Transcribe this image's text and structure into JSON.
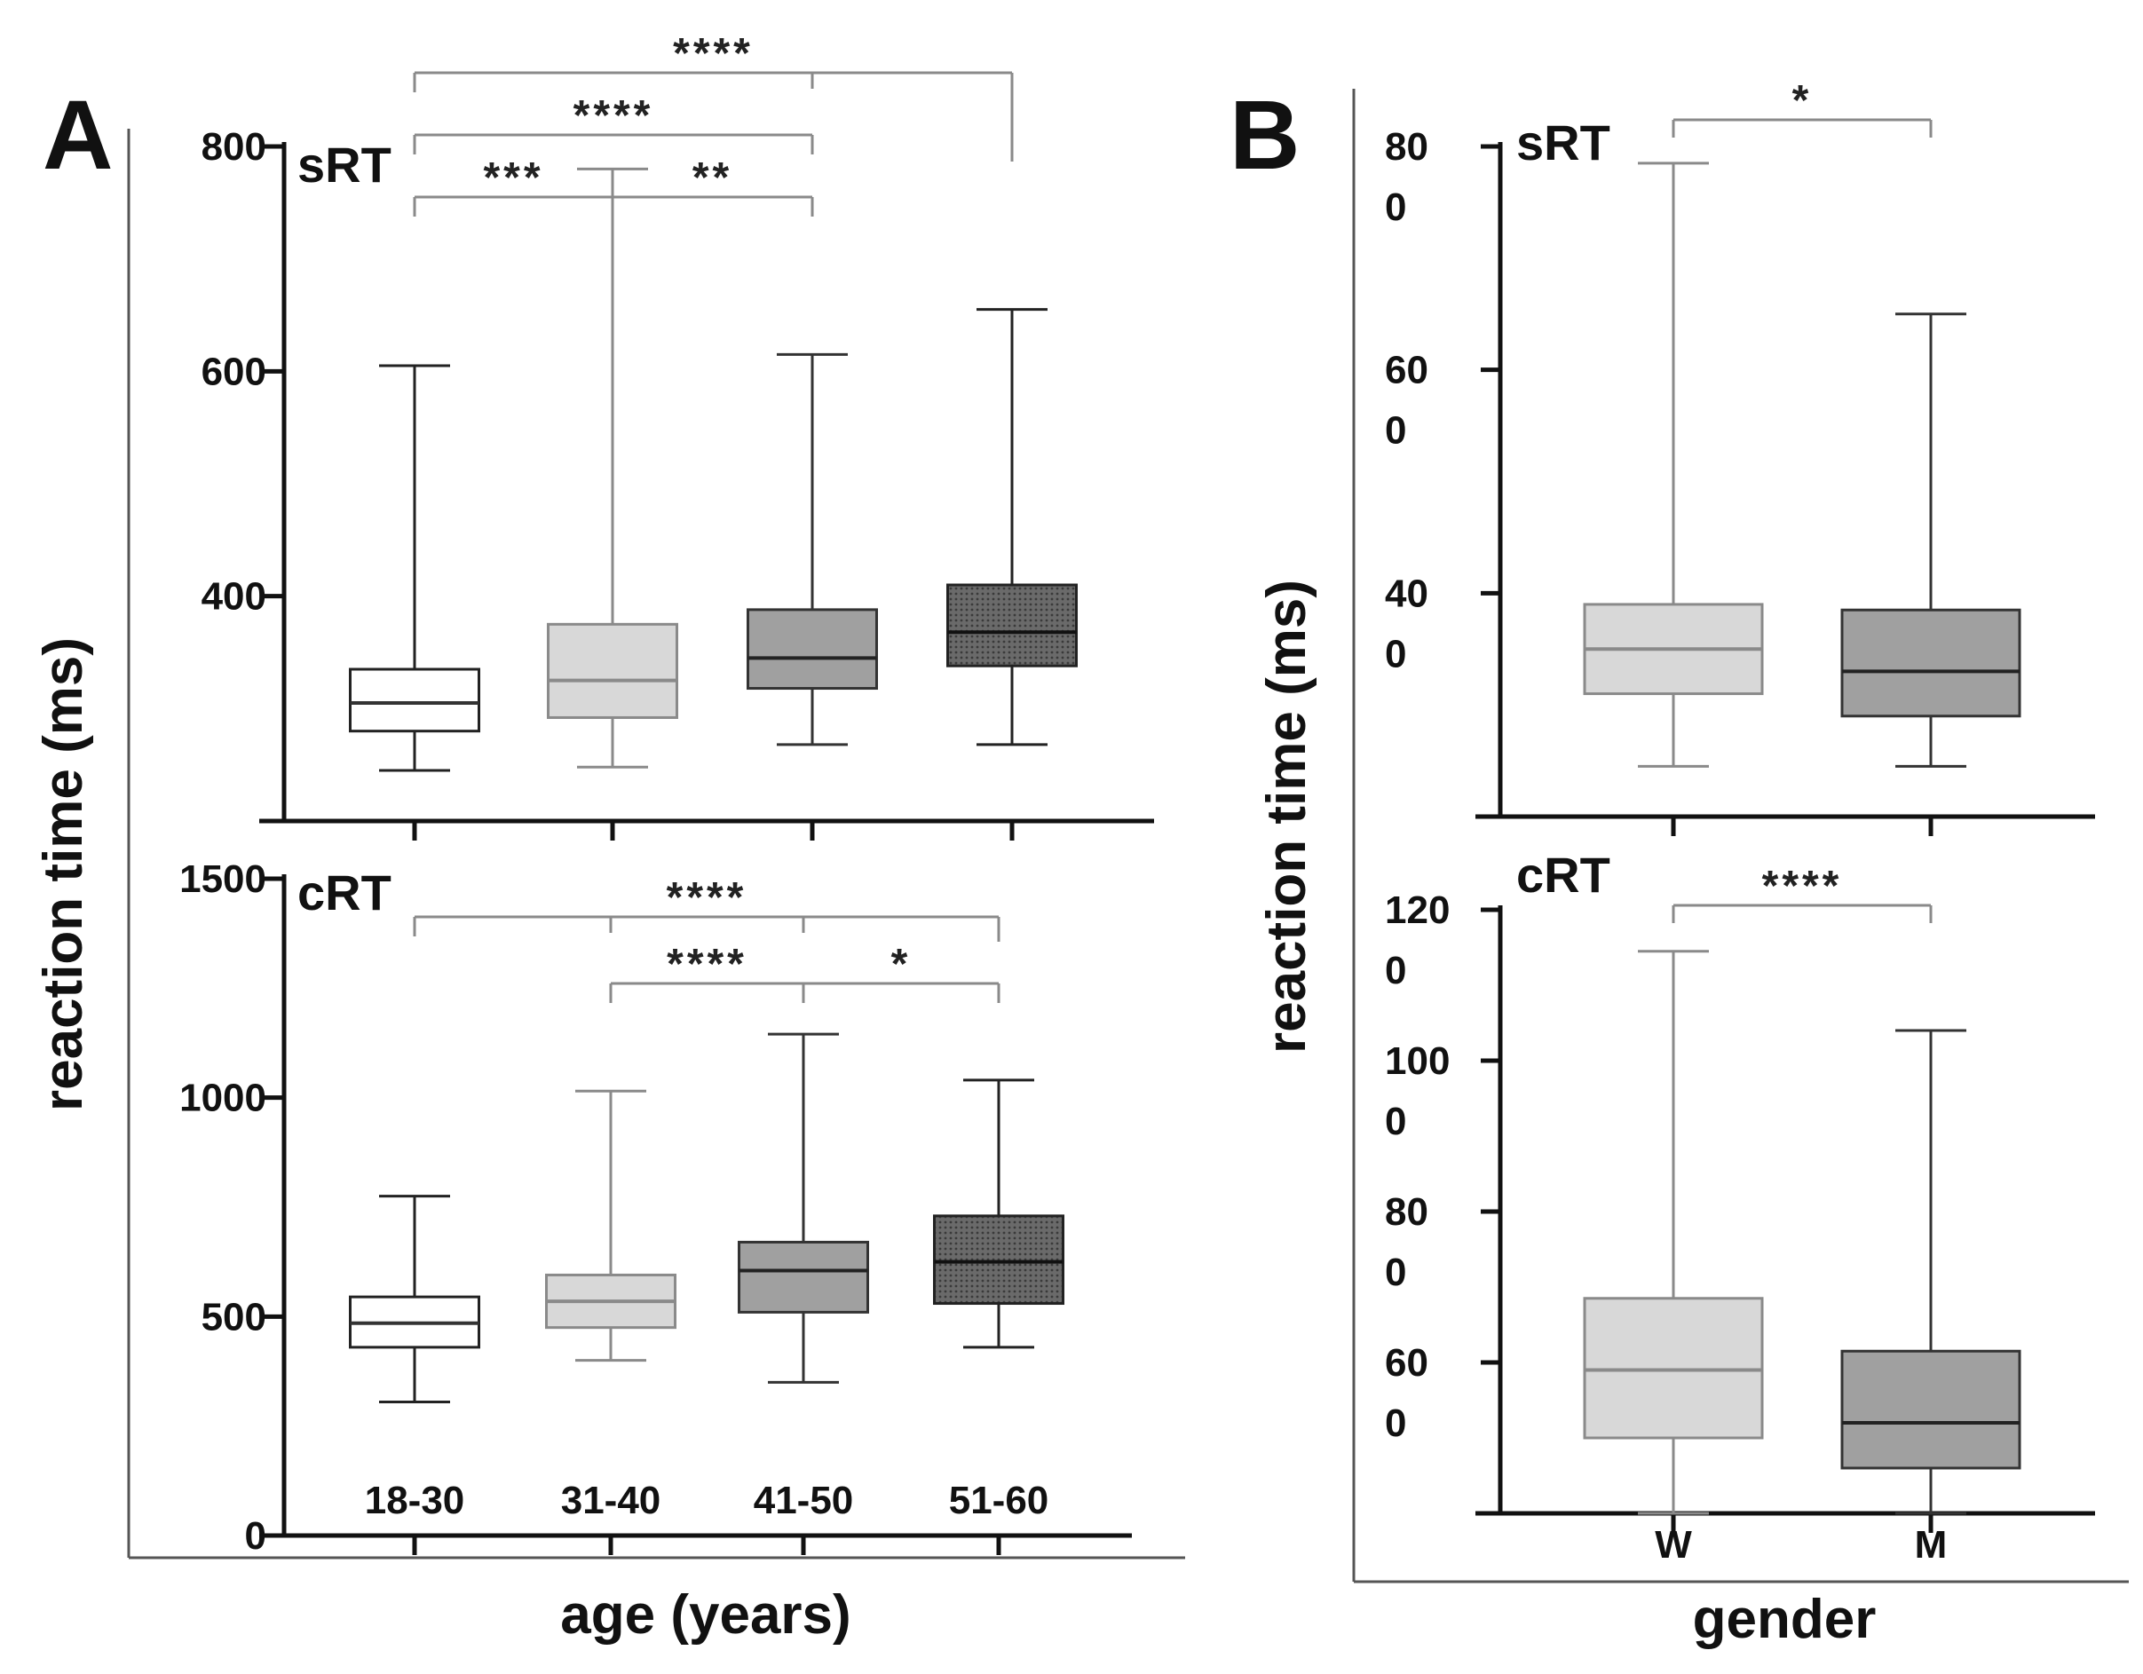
{
  "figure": {
    "panel_a_letter": "A",
    "panel_b_letter": "B",
    "ylabel": "reaction time (ms)",
    "panel_a_xlabel": "age (years)",
    "panel_b_xlabel": "gender"
  },
  "colors": {
    "white_box": "#ffffff",
    "light_box": "#d8d8d8",
    "mid_box": "#a0a0a0",
    "dark_box": "#555555",
    "bracket": "#8a8a8a"
  },
  "chart_data": [
    {
      "id": "A-sRT",
      "type": "box",
      "panel": "A",
      "title": "sRT",
      "xlabel": "age (years)",
      "ylabel": "reaction time (ms)",
      "ylim": [
        200,
        800
      ],
      "yticks": [
        {
          "value": 400,
          "label": "400"
        },
        {
          "value": 600,
          "label": "600"
        },
        {
          "value": 800,
          "label": "800"
        }
      ],
      "categories": [
        "18-30",
        "31-40",
        "41-50",
        "51-60"
      ],
      "fills": [
        "white",
        "light",
        "mid",
        "dark"
      ],
      "boxes": [
        {
          "min": 245,
          "q1": 280,
          "median": 305,
          "q3": 335,
          "max": 605
        },
        {
          "min": 248,
          "q1": 292,
          "median": 325,
          "q3": 375,
          "max": 780
        },
        {
          "min": 268,
          "q1": 318,
          "median": 345,
          "q3": 388,
          "max": 615
        },
        {
          "min": 268,
          "q1": 338,
          "median": 368,
          "q3": 410,
          "max": 655
        }
      ],
      "brackets": [
        {
          "from": 0,
          "to": 1,
          "label": "***",
          "level": 0
        },
        {
          "from": 1,
          "to": 2,
          "label": "**",
          "level": 0
        },
        {
          "from": 0,
          "to": 2,
          "label": "****",
          "level": 1
        },
        {
          "from": 0,
          "to": 3,
          "label": "****",
          "level": 2,
          "mids": [
            2
          ]
        }
      ]
    },
    {
      "id": "A-cRT",
      "type": "box",
      "panel": "A",
      "title": "cRT",
      "xlabel": "age (years)",
      "ylabel": "reaction time (ms)",
      "ylim": [
        0,
        1500
      ],
      "yticks": [
        {
          "value": 0,
          "label": "0"
        },
        {
          "value": 500,
          "label": "500"
        },
        {
          "value": 1000,
          "label": "1000"
        },
        {
          "value": 1500,
          "label": "1500"
        }
      ],
      "categories": [
        "18-30",
        "31-40",
        "41-50",
        "51-60"
      ],
      "fills": [
        "white",
        "light",
        "mid",
        "dark"
      ],
      "boxes": [
        {
          "min": 305,
          "q1": 430,
          "median": 485,
          "q3": 545,
          "max": 775
        },
        {
          "min": 400,
          "q1": 475,
          "median": 535,
          "q3": 595,
          "max": 1015
        },
        {
          "min": 350,
          "q1": 510,
          "median": 605,
          "q3": 670,
          "max": 1145
        },
        {
          "min": 430,
          "q1": 530,
          "median": 625,
          "q3": 730,
          "max": 1040
        }
      ],
      "brackets": [
        {
          "from": 1,
          "to": 2,
          "label": "****",
          "level": 0
        },
        {
          "from": 2,
          "to": 3,
          "label": "*",
          "level": 0
        },
        {
          "from": 0,
          "to": 3,
          "label": "****",
          "level": 1,
          "mids": [
            1,
            2
          ]
        }
      ]
    },
    {
      "id": "B-sRT",
      "type": "box",
      "panel": "B",
      "title": "sRT",
      "xlabel": "gender",
      "ylabel": "reaction time (ms)",
      "ylim": [
        200,
        800
      ],
      "yticks": [
        {
          "value": 400,
          "label": "40",
          "sub": "0"
        },
        {
          "value": 600,
          "label": "60",
          "sub": "0"
        },
        {
          "value": 800,
          "label": "80",
          "sub": "0"
        }
      ],
      "categories": [
        "W",
        "M"
      ],
      "fills": [
        "light",
        "mid"
      ],
      "boxes": [
        {
          "min": 245,
          "q1": 310,
          "median": 350,
          "q3": 390,
          "max": 785
        },
        {
          "min": 245,
          "q1": 290,
          "median": 330,
          "q3": 385,
          "max": 650
        }
      ],
      "brackets": [
        {
          "from": 0,
          "to": 1,
          "label": "*",
          "level": 0
        }
      ]
    },
    {
      "id": "B-cRT",
      "type": "box",
      "panel": "B",
      "title": "cRT",
      "xlabel": "gender",
      "ylabel": "reaction time (ms)",
      "ylim": [
        400,
        1200
      ],
      "yticks": [
        {
          "value": 600,
          "label": "60",
          "sub": "0"
        },
        {
          "value": 800,
          "label": "80",
          "sub": "0"
        },
        {
          "value": 1000,
          "label": "100",
          "sub": "0"
        },
        {
          "value": 1200,
          "label": "120",
          "sub": "0"
        }
      ],
      "categories": [
        "W",
        "M"
      ],
      "fills": [
        "light",
        "mid"
      ],
      "boxes": [
        {
          "min": 400,
          "q1": 500,
          "median": 590,
          "q3": 685,
          "max": 1145
        },
        {
          "min": 400,
          "q1": 460,
          "median": 520,
          "q3": 615,
          "max": 1040
        }
      ],
      "brackets": [
        {
          "from": 0,
          "to": 1,
          "label": "****",
          "level": 0
        }
      ]
    }
  ]
}
